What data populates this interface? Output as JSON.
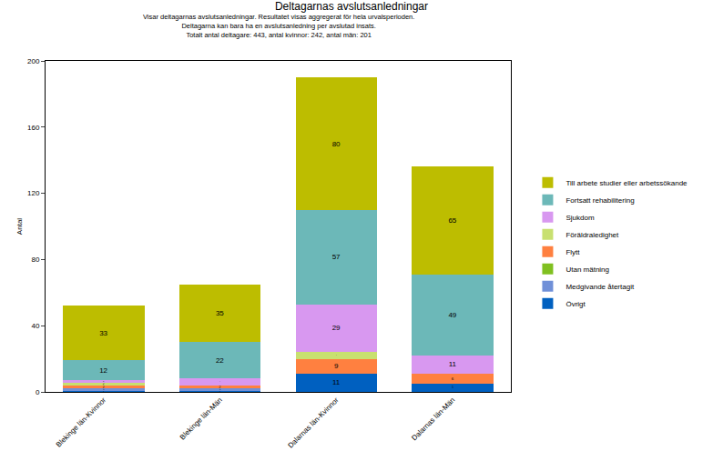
{
  "chart_data": {
    "type": "bar",
    "title": "Deltagarnas avslutsanledningar",
    "subtitle": [
      "Visar deltagarnas avslutsanledningar. Resultatet visas aggregerat för hela urvalsperioden.",
      "Deltagarna kan bara ha en avslutsanledning per avslutad insats.",
      "Totalt antal deltagare: 443, antal kvinnor: 242, antal män: 201"
    ],
    "y_label": "Antal",
    "categories": [
      "Blekinge län-Kvinnor",
      "Blekinge län-Män",
      "Dalarnas län-Kvinnor",
      "Dalarnas län-Män"
    ],
    "stacked": true,
    "data_labels": true,
    "grid": false,
    "legend": "right",
    "ylim": [
      0,
      200
    ],
    "yticks": [
      0,
      40,
      80,
      120,
      160,
      200
    ],
    "series": [
      {
        "name": "Till arbete studier eller arbetssökande",
        "color": "#bdbd00",
        "values": [
          33,
          35,
          80,
          65
        ]
      },
      {
        "name": "Fortsatt rehabilitering",
        "color": "#6cb8b8",
        "values": [
          12,
          22,
          57,
          49
        ]
      },
      {
        "name": "Sjukdom",
        "color": "#d898f0",
        "values": [
          1,
          4,
          29,
          11
        ]
      },
      {
        "name": "Föräldraledighet",
        "color": "#c8e070",
        "values": [
          2,
          null,
          4,
          null
        ]
      },
      {
        "name": "Flytt",
        "color": "#ff8040",
        "values": [
          2,
          2,
          9,
          6
        ]
      },
      {
        "name": "Utan mätning",
        "color": "#80c020",
        "values": [
          null,
          null,
          null,
          null
        ]
      },
      {
        "name": "Medgivande återtagit",
        "color": "#7090d8",
        "values": [
          1,
          1,
          null,
          null
        ]
      },
      {
        "name": "Övrigt",
        "color": "#0060c0",
        "values": [
          1,
          1,
          11,
          5
        ]
      }
    ]
  }
}
